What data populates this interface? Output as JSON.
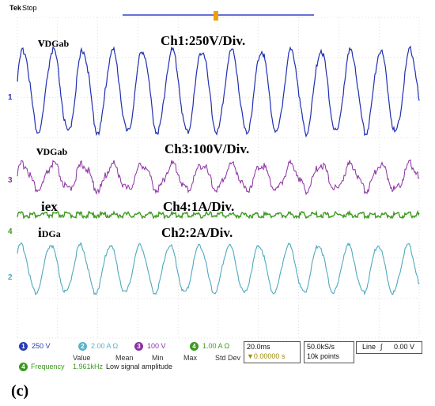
{
  "header": {
    "brand": "Tek",
    "status": "Stop"
  },
  "annotations": {
    "ch1_signal_main": "v",
    "ch1_signal_sub": "DGab",
    "ch1_scale": "Ch1:250V/Div.",
    "ch3_signal_main": "v",
    "ch3_signal_sub": "DGab",
    "ch3_scale": "Ch3:100V/Div.",
    "ch4_signal": "iex",
    "ch4_scale": "Ch4:1A/Div.",
    "ch2_signal_main": "i",
    "ch2_signal_sub": "DGa",
    "ch2_scale": "Ch2:2A/Div."
  },
  "channel_markers": {
    "ch1": "1",
    "ch3": "3",
    "ch4": "4",
    "ch2": "2"
  },
  "bottom_bar": {
    "channels": [
      {
        "num": "1",
        "value": "250 V",
        "color": "#2a3bb8"
      },
      {
        "num": "2",
        "value": "2.00 A Ω",
        "color": "#54b6c7"
      },
      {
        "num": "3",
        "value": "100 V",
        "color": "#8a2fa3"
      },
      {
        "num": "4",
        "value": "1.00 A Ω",
        "color": "#3a9a1f"
      }
    ],
    "stat_headers": [
      "Value",
      "Mean",
      "Min",
      "Max",
      "Std Dev"
    ],
    "measurement": {
      "channel": "4",
      "name": "Frequency",
      "value": "1.961kHz",
      "note": "Low signal amplitude"
    },
    "timebase": "20.0ms",
    "trigger_pos": "▼0.00000 s",
    "sample_rate": "50.0kS/s",
    "record_length": "10k points",
    "trigger": {
      "source": "Line",
      "slope": "∫",
      "level": "0.00 V"
    }
  },
  "caption": "(c)",
  "colors": {
    "ch1": "#1f2fb0",
    "ch2": "#4fa9bd",
    "ch3": "#8b2fa0",
    "ch4": "#3f9a22",
    "grid": "#c6c6c6"
  }
}
